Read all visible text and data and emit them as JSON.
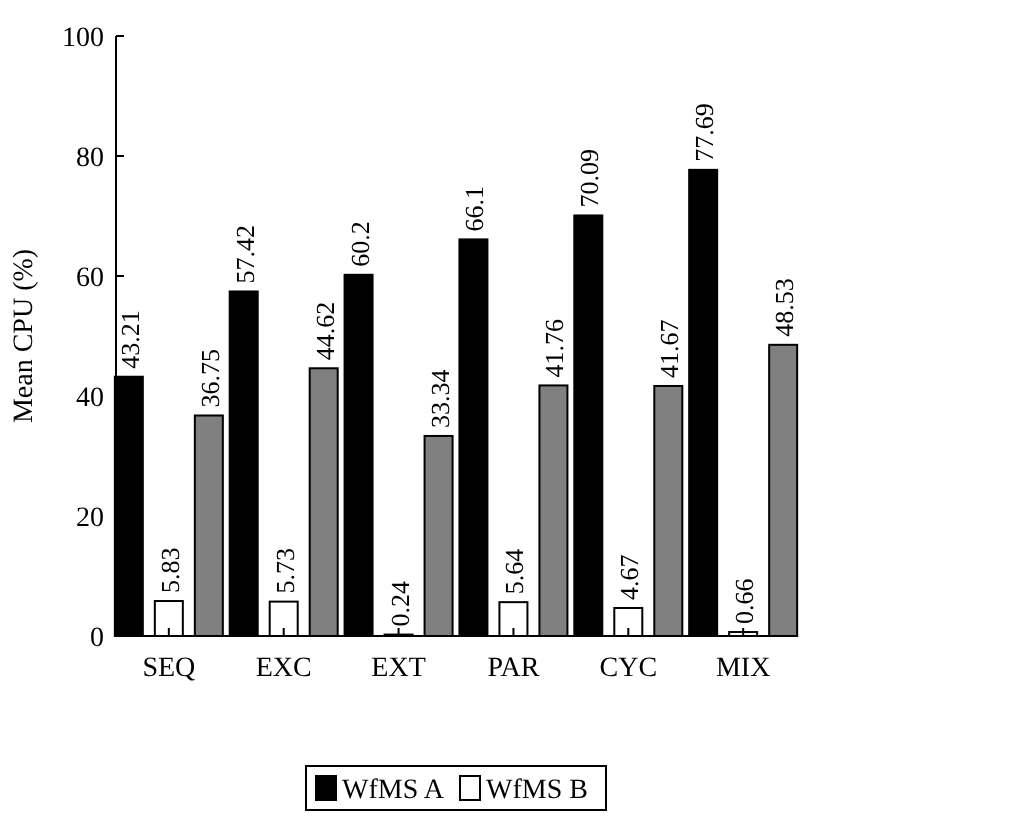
{
  "chart_data": {
    "type": "bar",
    "ylabel": "Mean CPU (%)",
    "categories": [
      "SEQ",
      "EXC",
      "EXT",
      "PAR",
      "CYC",
      "MIX"
    ],
    "series": [
      {
        "name": "WfMS A",
        "color": "#000000",
        "values": [
          43.21,
          57.42,
          60.2,
          66.1,
          70.09,
          77.69
        ]
      },
      {
        "name": "WfMS B",
        "color": "#ffffff",
        "values": [
          5.83,
          5.73,
          0.24,
          5.64,
          4.67,
          0.66
        ]
      },
      {
        "color": "#808080",
        "values": [
          36.75,
          44.62,
          33.34,
          41.76,
          41.67,
          48.53
        ]
      }
    ],
    "ylim": [
      0,
      100
    ],
    "yticks": [
      0,
      20,
      40,
      60,
      80,
      100
    ],
    "data_labels": true,
    "legend": "bottom"
  }
}
